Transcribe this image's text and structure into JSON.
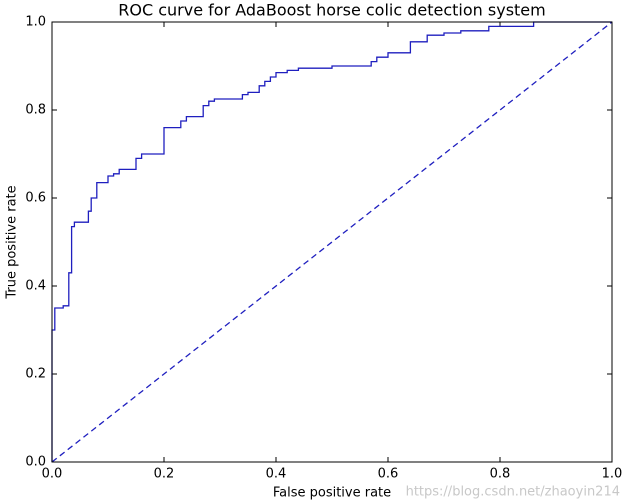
{
  "chart_data": {
    "type": "line",
    "title": "ROC curve for AdaBoost horse colic detection system",
    "x_label": "False positive rate",
    "y_label": "True positive rate",
    "annotations": [
      "https://blog.csdn.net/zhaoyin214"
    ],
    "xlim": [
      0,
      1
    ],
    "ylim": [
      0,
      1
    ],
    "xticks": [
      {
        "value": 0,
        "label": "0.0"
      },
      {
        "value": 0.2,
        "label": "0.2"
      },
      {
        "value": 0.4,
        "label": "0.4"
      },
      {
        "value": 0.6,
        "label": "0.6"
      },
      {
        "value": 0.8,
        "label": "0.8"
      },
      {
        "value": 1,
        "label": "1.0"
      }
    ],
    "yticks": [
      {
        "value": 0,
        "label": "0.0"
      },
      {
        "value": 0.2,
        "label": "0.2"
      },
      {
        "value": 0.4,
        "label": "0.4"
      },
      {
        "value": 0.6,
        "label": "0.6"
      },
      {
        "value": 0.8,
        "label": "0.8"
      },
      {
        "value": 1,
        "label": "1.0"
      }
    ],
    "grid": false,
    "series": [
      {
        "color": "#1f1fbf",
        "dashed": false,
        "x": [
          0,
          0,
          0.005,
          0.005,
          0.02,
          0.02,
          0.03,
          0.03,
          0.035,
          0.035,
          0.04,
          0.04,
          0.065,
          0.065,
          0.07,
          0.07,
          0.08,
          0.08,
          0.1,
          0.1,
          0.11,
          0.11,
          0.12,
          0.12,
          0.15,
          0.15,
          0.16,
          0.16,
          0.2,
          0.2,
          0.23,
          0.23,
          0.24,
          0.24,
          0.27,
          0.27,
          0.28,
          0.28,
          0.29,
          0.29,
          0.34,
          0.34,
          0.35,
          0.35,
          0.37,
          0.37,
          0.38,
          0.38,
          0.39,
          0.39,
          0.4,
          0.4,
          0.42,
          0.42,
          0.44,
          0.44,
          0.5,
          0.5,
          0.57,
          0.57,
          0.58,
          0.58,
          0.6,
          0.6,
          0.64,
          0.64,
          0.67,
          0.67,
          0.7,
          0.7,
          0.73,
          0.73,
          0.78,
          0.78,
          0.86,
          0.86,
          1
        ],
        "values": [
          0,
          0.3,
          0.3,
          0.35,
          0.35,
          0.355,
          0.355,
          0.43,
          0.43,
          0.535,
          0.535,
          0.545,
          0.545,
          0.57,
          0.57,
          0.6,
          0.6,
          0.635,
          0.635,
          0.65,
          0.65,
          0.655,
          0.655,
          0.665,
          0.665,
          0.69,
          0.69,
          0.7,
          0.7,
          0.76,
          0.76,
          0.775,
          0.775,
          0.785,
          0.785,
          0.81,
          0.81,
          0.82,
          0.82,
          0.825,
          0.825,
          0.835,
          0.835,
          0.84,
          0.84,
          0.855,
          0.855,
          0.865,
          0.865,
          0.875,
          0.875,
          0.885,
          0.885,
          0.89,
          0.89,
          0.895,
          0.895,
          0.9,
          0.9,
          0.91,
          0.91,
          0.92,
          0.92,
          0.93,
          0.93,
          0.955,
          0.955,
          0.97,
          0.97,
          0.975,
          0.975,
          0.98,
          0.98,
          0.99,
          0.99,
          1,
          1
        ]
      },
      {
        "color": "#1f1fbf",
        "dashed": true,
        "x": [
          0,
          1
        ],
        "values": [
          0,
          1
        ]
      }
    ]
  }
}
